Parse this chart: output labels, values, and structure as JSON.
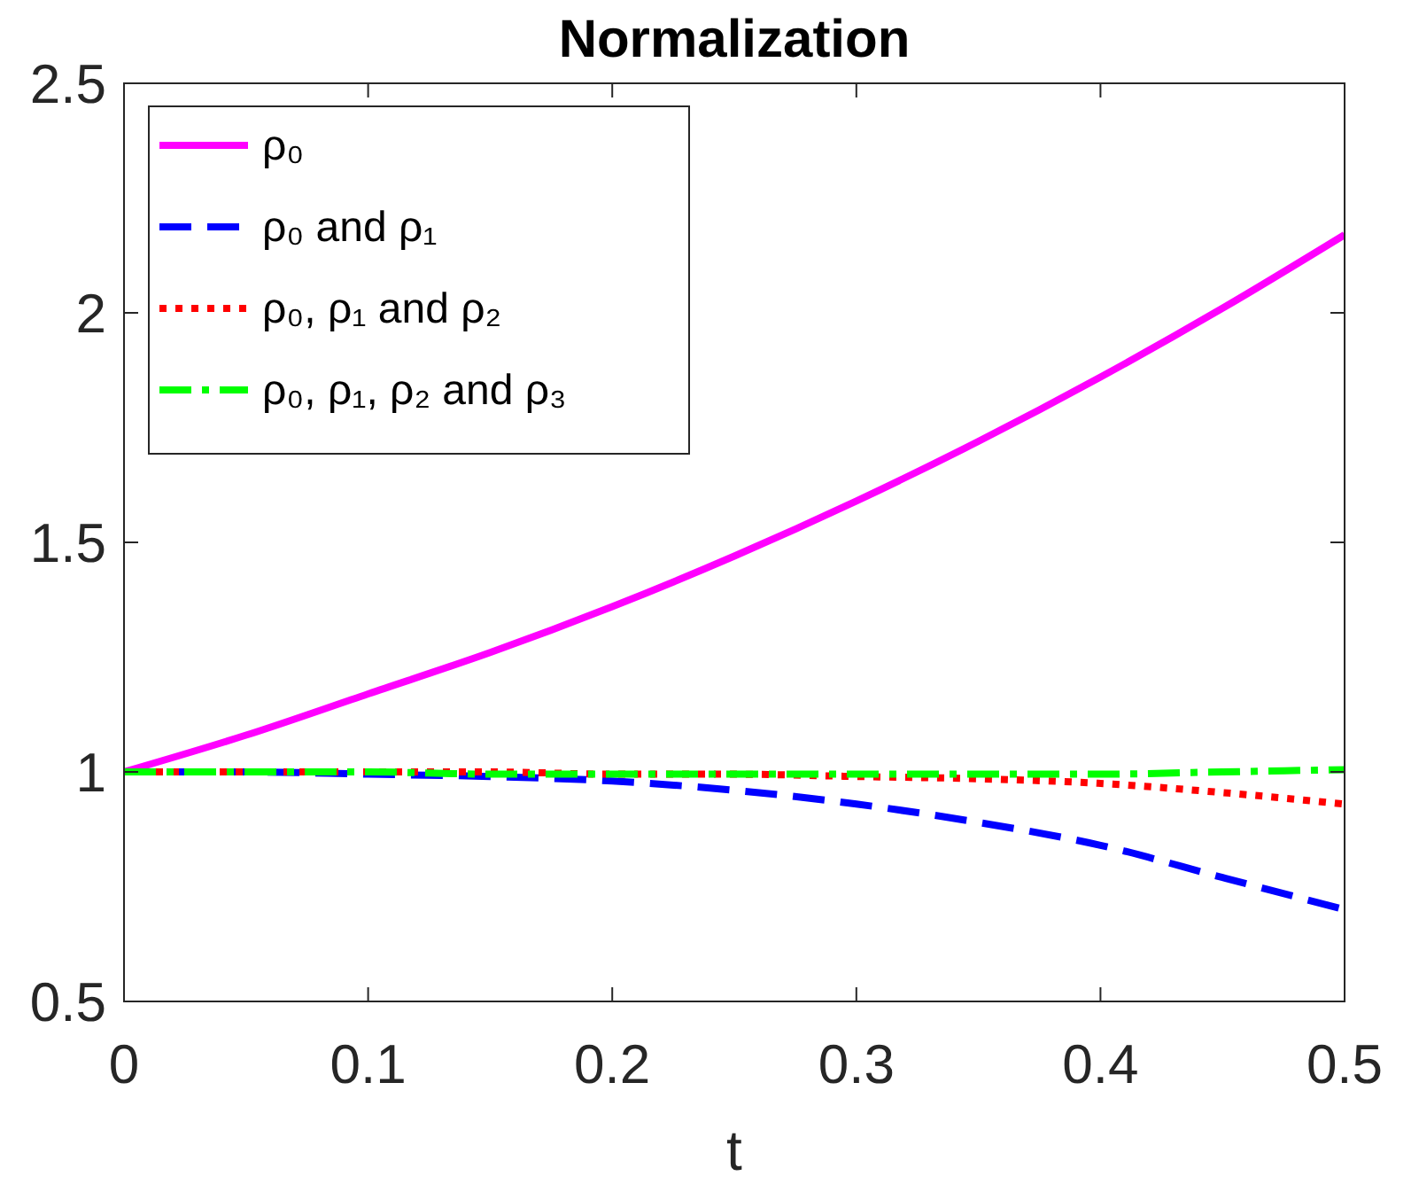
{
  "chart_data": {
    "type": "line",
    "title": "Normalization",
    "xlabel": "t",
    "x": [
      0,
      0.05,
      0.1,
      0.15,
      0.2,
      0.25,
      0.3,
      0.35,
      0.4,
      0.45,
      0.5
    ],
    "xlim": [
      0,
      0.5
    ],
    "xticks": [
      0,
      0.1,
      0.2,
      0.3,
      0.4,
      0.5
    ],
    "ylim": [
      0.5,
      2.5
    ],
    "yticks": [
      0.5,
      1,
      1.5,
      2,
      2.5
    ],
    "grid": false,
    "legend": "top left",
    "marker": "none",
    "series": [
      {
        "name": "ρ₀",
        "color": "#ff00ff",
        "line_style": "solid",
        "values": [
          1,
          1.08,
          1.17,
          1.26,
          1.36,
          1.47,
          1.59,
          1.72,
          1.86,
          2.01,
          2.17
        ]
      },
      {
        "name": "ρ₀ and ρ₁",
        "color": "#0000ff",
        "line_style": "dashed",
        "values": [
          1,
          1,
          0.995,
          0.99,
          0.98,
          0.96,
          0.93,
          0.89,
          0.84,
          0.77,
          0.7
        ]
      },
      {
        "name": "ρ₀, ρ₁ and ρ₂",
        "color": "#ff0000",
        "line_style": "dotted",
        "values": [
          1,
          1,
          1,
          1,
          0.995,
          0.995,
          0.99,
          0.985,
          0.975,
          0.955,
          0.93
        ]
      },
      {
        "name": "ρ₀, ρ₁, ρ₂ and ρ₃",
        "color": "#00ff00",
        "line_style": "dashdot",
        "values": [
          1,
          1,
          1,
          0.995,
          0.995,
          0.995,
          0.995,
          0.995,
          0.995,
          1,
          1.005
        ]
      }
    ]
  }
}
